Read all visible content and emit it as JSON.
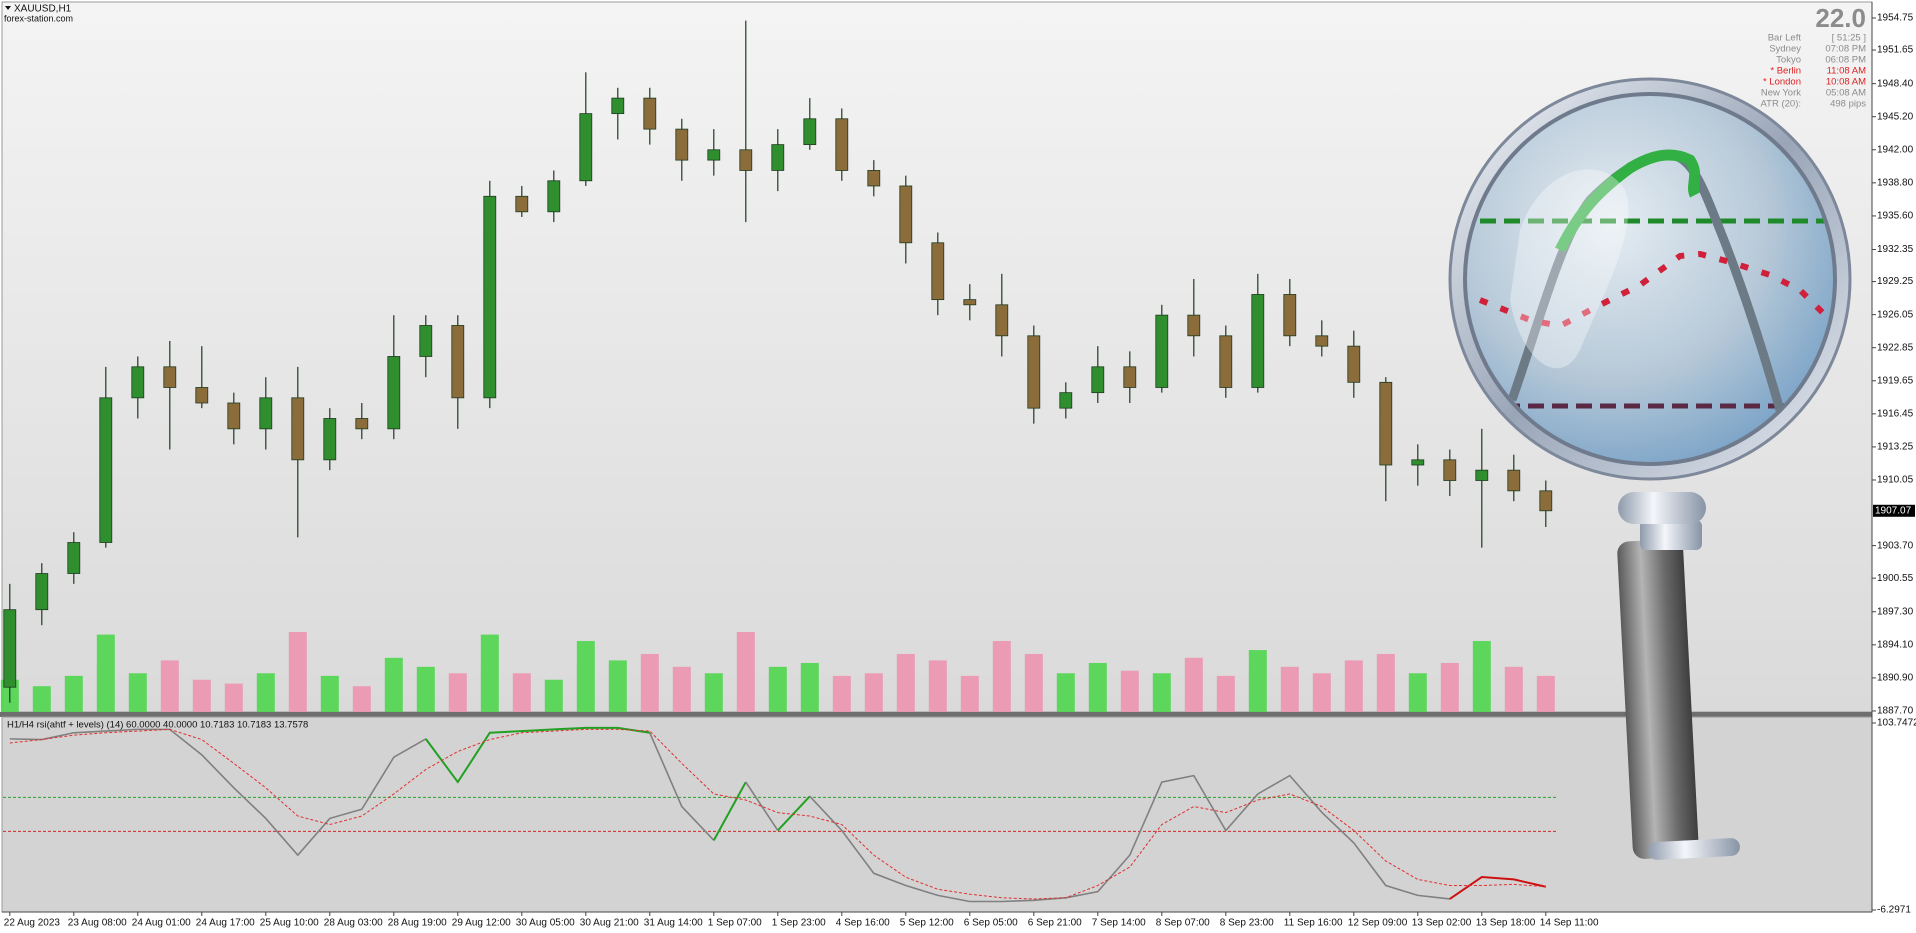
{
  "chart_data": [
    {
      "type": "candlestick",
      "title": "XAUUSD,H1",
      "subtitle": "forex-station.com",
      "categories": [
        "22 Aug 2023",
        null,
        "23 Aug 08:00",
        null,
        "24 Aug 01:00",
        null,
        "24 Aug 17:00",
        null,
        "25 Aug 10:00",
        null,
        "28 Aug 03:00",
        null,
        "28 Aug 19:00",
        null,
        "29 Aug 12:00",
        null,
        "30 Aug 05:00",
        null,
        "30 Aug 21:00",
        null,
        "31 Aug 14:00",
        null,
        "1 Sep 07:00",
        null,
        "1 Sep 23:00",
        null,
        "4 Sep 16:00",
        null,
        "5 Sep 12:00",
        null,
        "6 Sep 05:00",
        null,
        "6 Sep 21:00",
        null,
        "7 Sep 14:00",
        null,
        "8 Sep 07:00",
        null,
        "8 Sep 23:00",
        null,
        "11 Sep 16:00",
        null,
        "12 Sep 09:00",
        null,
        "13 Sep 02:00",
        null,
        "13 Sep 18:00",
        null,
        "14 Sep 11:00"
      ],
      "open": [
        1890,
        1897.5,
        1901,
        1904,
        1918,
        1921,
        1919,
        1917.5,
        1915,
        1918,
        1912,
        1916,
        1915,
        1922,
        1925,
        1918,
        1937.5,
        1936,
        1939,
        1945.5,
        1947,
        1944,
        1941,
        1942,
        1940,
        1942.5,
        1945,
        1940,
        1938.5,
        1933,
        1927.5,
        1927,
        1924,
        1917,
        1918.5,
        1921,
        1919,
        1926,
        1924,
        1919,
        1928,
        1924,
        1923,
        1919.5,
        1911.5,
        1912,
        1910,
        1911,
        1909
      ],
      "high": [
        1900,
        1902,
        1905,
        1921,
        1922,
        1923.5,
        1923,
        1918.5,
        1920,
        1921,
        1917,
        1917.5,
        1926,
        1926,
        1926,
        1939,
        1938.5,
        1940,
        1949.5,
        1948,
        1948,
        1945,
        1944,
        1954.5,
        1944,
        1947,
        1946,
        1941,
        1939.5,
        1934,
        1929,
        1930,
        1925,
        1919.5,
        1923,
        1922.5,
        1927,
        1929.5,
        1925,
        1930,
        1929.5,
        1925.5,
        1924.5,
        1920,
        1913.5,
        1913,
        1915,
        1912.5,
        1910
      ],
      "low": [
        1888.5,
        1896,
        1900,
        1903.5,
        1916,
        1913,
        1917,
        1913.5,
        1913,
        1904.5,
        1911,
        1914,
        1914,
        1920,
        1915,
        1917,
        1935.5,
        1935,
        1938.5,
        1943,
        1942.5,
        1939,
        1939.5,
        1935,
        1938,
        1942,
        1939,
        1937.5,
        1931,
        1926,
        1925.5,
        1922,
        1915.5,
        1916,
        1917.5,
        1917.5,
        1918.5,
        1922,
        1918,
        1918.5,
        1923,
        1922,
        1918,
        1908,
        1909.5,
        1908.5,
        1903.5,
        1908,
        1905.5
      ],
      "close": [
        1897.5,
        1901,
        1904,
        1918,
        1921,
        1919,
        1917.5,
        1915,
        1918,
        1912,
        1916,
        1915,
        1922,
        1925,
        1918,
        1937.5,
        1936,
        1939,
        1945.5,
        1947,
        1944,
        1941,
        1942,
        1940,
        1942.5,
        1945,
        1940,
        1938.5,
        1933,
        1927.5,
        1927,
        1924,
        1917,
        1918.5,
        1921,
        1919,
        1926,
        1924,
        1919,
        1928,
        1924,
        1923,
        1919.5,
        1911.5,
        1912,
        1910,
        1911,
        1909,
        1907.07
      ],
      "volume": [
        25,
        20,
        28,
        60,
        30,
        40,
        25,
        22,
        30,
        62,
        28,
        20,
        42,
        35,
        30,
        60,
        30,
        25,
        55,
        40,
        45,
        35,
        30,
        62,
        35,
        38,
        28,
        30,
        45,
        40,
        28,
        55,
        45,
        30,
        38,
        32,
        30,
        42,
        28,
        48,
        35,
        30,
        40,
        45,
        30,
        38,
        55,
        35,
        28
      ],
      "up_color": "#2f8f2f",
      "down_color": "#8a6d3b",
      "volume_up_color": "#45d645",
      "volume_down_color": "#ee8fae",
      "ylim": [
        1887.6,
        1956.3
      ],
      "yticks": [
        1954.75,
        1951.65,
        {
          "value": 1948.4,
          "label": "1948.40"
        },
        {
          "value": 1945.2,
          "label": "1945.20"
        },
        {
          "value": 1942,
          "label": "1942.00"
        },
        {
          "value": 1938.8,
          "label": "1938.80"
        },
        {
          "value": 1935.6,
          "label": "1935.60"
        },
        1932.35,
        1929.25,
        1926.05,
        1922.85,
        1919.65,
        1916.45,
        1913.25,
        1910.05,
        {
          "value": 1903.7,
          "label": "1903.70"
        },
        1900.55,
        {
          "value": 1897.3,
          "label": "1897.30"
        },
        {
          "value": 1894.1,
          "label": "1894.10"
        },
        {
          "value": 1890.9,
          "label": "1890.90"
        },
        {
          "value": 1887.7,
          "label": "1887.70"
        }
      ],
      "last_price": 1907.07
    },
    {
      "type": "line",
      "title": "H1/H4 rsi(ahtf + levels) (14) 60.0000 40.0000 10.7183 10.7183 13.7578",
      "series": [
        {
          "color": "#808080",
          "values": [
            94.4,
            94,
            98,
            99,
            100,
            100,
            85,
            65.6,
            47.6,
            26,
            47.6,
            53,
            83.6,
            94.4,
            69,
            98,
            99,
            100,
            100.9,
            100.9,
            98,
            54.6,
            34.7,
            69,
            40.5,
            60.6,
            40.5,
            15.3,
            8.1,
            2.3,
            -1.3,
            -1.3,
            -0.6,
            0.9,
            4.5,
            26,
            69,
            72.8,
            40.5,
            62,
            72.8,
            51.2,
            33.2,
            8.1,
            2.3,
            0.2,
            13.1,
            11.7,
            7.4
          ],
          "segment_colors": [
            "#808080",
            "#808080",
            "#808080",
            "#808080",
            "#808080",
            "#808080",
            "#808080",
            "#808080",
            "#808080",
            "#808080",
            "#808080",
            "#808080",
            "#808080",
            "#808080",
            "#22a022",
            "#22a022",
            "#22a022",
            "#22a022",
            "#22a022",
            "#22a022",
            "#22a022",
            "#808080",
            "#808080",
            "#22a022",
            "#808080",
            "#22a022",
            "#808080",
            "#808080",
            "#808080",
            "#808080",
            "#808080",
            "#808080",
            "#808080",
            "#808080",
            "#808080",
            "#808080",
            "#808080",
            "#808080",
            "#808080",
            "#808080",
            "#808080",
            "#808080",
            "#808080",
            "#808080",
            "#808080",
            "#808080",
            "#cc1111",
            "#cc1111",
            "#cc1111"
          ]
        },
        {
          "color": "#e03030",
          "dash": true,
          "values": [
            92,
            94,
            96.6,
            98,
            99,
            100,
            94,
            80,
            65.6,
            49,
            44,
            49,
            62,
            76.4,
            87,
            94,
            98,
            99,
            100,
            100,
            99,
            80,
            62,
            58.4,
            51,
            49,
            44,
            26,
            13,
            5.9,
            3,
            0.9,
            0.2,
            0.9,
            8.1,
            19,
            44,
            54.6,
            51,
            58.4,
            62,
            54.6,
            40.5,
            22.5,
            11.7,
            8.1,
            8.1,
            8.8,
            7.4
          ]
        }
      ],
      "levels": [
        {
          "value": 60,
          "color": "#2ca02c"
        },
        {
          "value": 40,
          "color": "#d62728"
        }
      ],
      "ylim": [
        -6.2971,
        103.7472
      ],
      "yticks": [
        -6.2971,
        103.7472
      ]
    }
  ],
  "info_panel": {
    "headline": "22.0",
    "rows": [
      {
        "label": "Bar Left",
        "value": "[ 51:25 ]",
        "color": "#8c8c8c"
      },
      {
        "label": "Sydney",
        "value": "07:08 PM",
        "color": "#8c8c8c"
      },
      {
        "label": "Tokyo",
        "value": "06:08 PM",
        "color": "#8c8c8c"
      },
      {
        "label": "* Berlin",
        "value": "11:08 AM",
        "color": "#e02020"
      },
      {
        "label": "* London",
        "value": "10:08 AM",
        "color": "#e02020"
      },
      {
        "label": "New York",
        "value": "05:08 AM",
        "color": "#8c8c8c"
      },
      {
        "label": "ATR (20):",
        "value": "498 pips",
        "color": "#8c8c8c"
      }
    ]
  }
}
